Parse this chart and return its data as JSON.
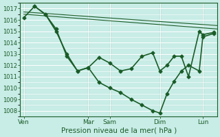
{
  "bg_color": "#c8ece6",
  "grid_color": "#ffffff",
  "line_color": "#1a5c28",
  "ylim": [
    1007.5,
    1017.5
  ],
  "yticks": [
    1008,
    1009,
    1010,
    1011,
    1012,
    1013,
    1014,
    1015,
    1016,
    1017
  ],
  "xtick_labels": [
    "Ven",
    "Mar",
    "Sam",
    "Dim",
    "Lun"
  ],
  "xtick_positions": [
    0,
    9,
    12,
    19,
    25
  ],
  "xlim": [
    -0.5,
    27
  ],
  "lines": [
    {
      "x": [
        0,
        27
      ],
      "y": [
        1016.5,
        1015.2
      ],
      "marker": null,
      "markersize": 0,
      "linewidth": 0.8
    },
    {
      "x": [
        0,
        27
      ],
      "y": [
        1016.7,
        1015.5
      ],
      "marker": null,
      "markersize": 0,
      "linewidth": 0.8
    },
    {
      "x": [
        0,
        1.5,
        3,
        4.5,
        6,
        7.5,
        9,
        10.5,
        12,
        13.5,
        15,
        16.5,
        18,
        19,
        20,
        21,
        22,
        23,
        24.5,
        25,
        26.5
      ],
      "y": [
        1016.2,
        1017.2,
        1016.5,
        1015.0,
        1013.0,
        1011.5,
        1011.8,
        1010.5,
        1010.0,
        1009.6,
        1009.0,
        1008.5,
        1008.0,
        1007.8,
        1009.5,
        1010.6,
        1011.5,
        1012.0,
        1011.5,
        1014.5,
        1014.8
      ],
      "marker": "D",
      "markersize": 2.5,
      "linewidth": 1.2
    },
    {
      "x": [
        1.5,
        3,
        4.5,
        6,
        7.5,
        9,
        10.5,
        12,
        13.5,
        15,
        16.5,
        18,
        19,
        20,
        21,
        22,
        23,
        24.5,
        25,
        26.5
      ],
      "y": [
        1017.2,
        1016.5,
        1015.2,
        1012.8,
        1011.5,
        1011.8,
        1012.7,
        1012.2,
        1011.5,
        1011.7,
        1012.8,
        1013.1,
        1011.5,
        1012.0,
        1012.8,
        1012.8,
        1011.0,
        1015.0,
        1014.7,
        1014.9
      ],
      "marker": "D",
      "markersize": 2.5,
      "linewidth": 1.2
    }
  ],
  "vlines_x": [
    0,
    9,
    12,
    19,
    25
  ],
  "xlabel": "Pression niveau de la mer( hPa )",
  "xlabel_fontsize": 7.5,
  "ytick_fontsize": 6,
  "xtick_fontsize": 6.5
}
